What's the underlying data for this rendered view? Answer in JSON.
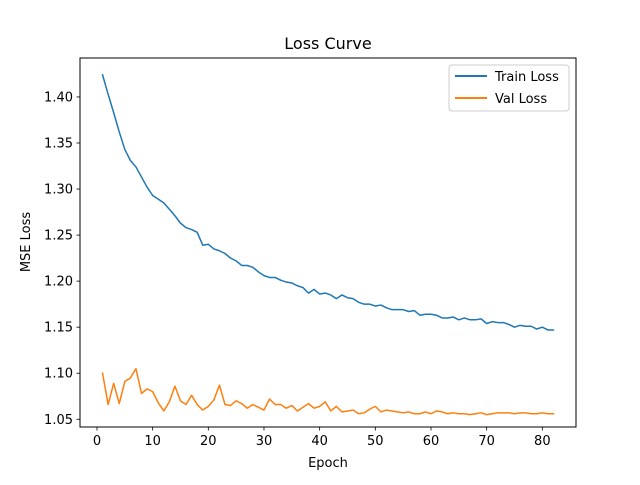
{
  "chart_data": {
    "type": "line",
    "title": "Loss Curve",
    "xlabel": "Epoch",
    "ylabel": "MSE Loss",
    "xlim": [
      -3.05,
      86.05
    ],
    "ylim": [
      1.0416,
      1.4423
    ],
    "xticks": [
      0,
      10,
      20,
      30,
      40,
      50,
      60,
      70,
      80
    ],
    "yticks": [
      1.05,
      1.1,
      1.15,
      1.2,
      1.25,
      1.3,
      1.35,
      1.4
    ],
    "grid": false,
    "legend_position": "top-right",
    "series": [
      {
        "name": "Train Loss",
        "color": "#1f77b4",
        "x": [
          1,
          2,
          3,
          4,
          5,
          6,
          7,
          8,
          9,
          10,
          11,
          12,
          13,
          14,
          15,
          16,
          17,
          18,
          19,
          20,
          21,
          22,
          23,
          24,
          25,
          26,
          27,
          28,
          29,
          30,
          31,
          32,
          33,
          34,
          35,
          36,
          37,
          38,
          39,
          40,
          41,
          42,
          43,
          44,
          45,
          46,
          47,
          48,
          49,
          50,
          51,
          52,
          53,
          54,
          55,
          56,
          57,
          58,
          59,
          60,
          61,
          62,
          63,
          64,
          65,
          66,
          67,
          68,
          69,
          70,
          71,
          72,
          73,
          74,
          75,
          76,
          77,
          78,
          79,
          80,
          81,
          82
        ],
        "values": [
          1.424,
          1.403,
          1.383,
          1.362,
          1.343,
          1.331,
          1.324,
          1.313,
          1.302,
          1.293,
          1.289,
          1.285,
          1.278,
          1.271,
          1.263,
          1.258,
          1.256,
          1.253,
          1.239,
          1.24,
          1.235,
          1.233,
          1.23,
          1.225,
          1.222,
          1.217,
          1.217,
          1.215,
          1.21,
          1.206,
          1.204,
          1.204,
          1.201,
          1.199,
          1.198,
          1.195,
          1.193,
          1.187,
          1.191,
          1.186,
          1.187,
          1.185,
          1.181,
          1.185,
          1.182,
          1.181,
          1.177,
          1.175,
          1.175,
          1.173,
          1.174,
          1.171,
          1.169,
          1.169,
          1.169,
          1.167,
          1.168,
          1.163,
          1.164,
          1.164,
          1.163,
          1.16,
          1.16,
          1.161,
          1.158,
          1.16,
          1.158,
          1.158,
          1.159,
          1.154,
          1.156,
          1.155,
          1.155,
          1.153,
          1.15,
          1.152,
          1.151,
          1.151,
          1.148,
          1.15,
          1.147,
          1.147
        ]
      },
      {
        "name": "Val Loss",
        "color": "#ff7f0e",
        "x": [
          1,
          2,
          3,
          4,
          5,
          6,
          7,
          8,
          9,
          10,
          11,
          12,
          13,
          14,
          15,
          16,
          17,
          18,
          19,
          20,
          21,
          22,
          23,
          24,
          25,
          26,
          27,
          28,
          29,
          30,
          31,
          32,
          33,
          34,
          35,
          36,
          37,
          38,
          39,
          40,
          41,
          42,
          43,
          44,
          45,
          46,
          47,
          48,
          49,
          50,
          51,
          52,
          53,
          54,
          55,
          56,
          57,
          58,
          59,
          60,
          61,
          62,
          63,
          64,
          65,
          66,
          67,
          68,
          69,
          70,
          71,
          72,
          73,
          74,
          75,
          76,
          77,
          78,
          79,
          80,
          81,
          82
        ],
        "values": [
          1.1,
          1.066,
          1.089,
          1.067,
          1.091,
          1.095,
          1.105,
          1.078,
          1.083,
          1.08,
          1.068,
          1.059,
          1.069,
          1.086,
          1.07,
          1.066,
          1.076,
          1.066,
          1.06,
          1.064,
          1.071,
          1.087,
          1.066,
          1.065,
          1.07,
          1.067,
          1.062,
          1.066,
          1.063,
          1.06,
          1.072,
          1.066,
          1.066,
          1.062,
          1.065,
          1.059,
          1.063,
          1.067,
          1.062,
          1.064,
          1.069,
          1.059,
          1.064,
          1.058,
          1.059,
          1.06,
          1.056,
          1.057,
          1.061,
          1.064,
          1.058,
          1.06,
          1.059,
          1.058,
          1.057,
          1.058,
          1.056,
          1.056,
          1.058,
          1.056,
          1.059,
          1.058,
          1.056,
          1.057,
          1.056,
          1.056,
          1.055,
          1.056,
          1.057,
          1.055,
          1.056,
          1.057,
          1.057,
          1.057,
          1.056,
          1.057,
          1.057,
          1.056,
          1.056,
          1.057,
          1.056,
          1.056
        ]
      }
    ]
  }
}
